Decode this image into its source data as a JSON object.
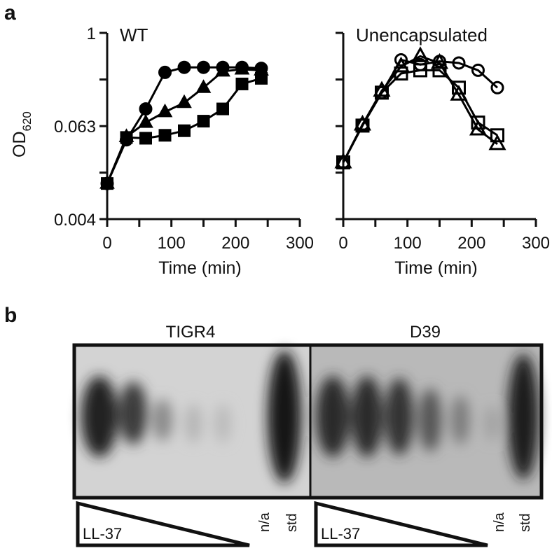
{
  "panel_a_label": "a",
  "chart_data": [
    {
      "type": "line",
      "title": "WT",
      "xlabel": "Time (min)",
      "ylabel": "OD",
      "ylabel_subscript": "620",
      "x": [
        0,
        30,
        60,
        90,
        120,
        150,
        180,
        210,
        240
      ],
      "xlim": [
        0,
        300
      ],
      "xticks": [
        0,
        100,
        200,
        300
      ],
      "ylim": [
        0.004,
        1
      ],
      "yticks": [
        0.004,
        0.063,
        1
      ],
      "ylog": true,
      "ytick_labels": true,
      "series": [
        {
          "marker": "circle",
          "filled": true,
          "color": "#000000",
          "values": [
            0.0115,
            0.042,
            0.105,
            0.31,
            0.36,
            0.36,
            0.36,
            0.36,
            0.35
          ]
        },
        {
          "marker": "triangle",
          "filled": true,
          "color": "#000000",
          "values": [
            0.0115,
            0.046,
            0.07,
            0.096,
            0.126,
            0.197,
            0.32,
            0.34,
            0.33
          ]
        },
        {
          "marker": "square",
          "filled": true,
          "color": "#000000",
          "values": [
            0.0115,
            0.045,
            0.044,
            0.048,
            0.055,
            0.073,
            0.105,
            0.22,
            0.26
          ]
        }
      ]
    },
    {
      "type": "line",
      "title": "Unencapsulated",
      "xlabel": "Time (min)",
      "x": [
        0,
        30,
        60,
        90,
        120,
        150,
        180,
        210,
        240
      ],
      "xlim": [
        0,
        300
      ],
      "xticks": [
        0,
        100,
        200,
        300
      ],
      "ylim": [
        0.004,
        1
      ],
      "yticks": [
        0.004,
        0.063,
        1
      ],
      "ylog": true,
      "ytick_labels": false,
      "series": [
        {
          "marker": "circle",
          "filled": false,
          "color": "#000000",
          "values": [
            0.0215,
            0.066,
            0.17,
            0.45,
            0.39,
            0.43,
            0.41,
            0.33,
            0.197
          ]
        },
        {
          "marker": "triangle",
          "filled": false,
          "color": "#000000",
          "values": [
            0.0215,
            0.066,
            0.18,
            0.37,
            0.5,
            0.41,
            0.16,
            0.057,
            0.037
          ]
        },
        {
          "marker": "square",
          "filled": false,
          "color": "#000000",
          "values": [
            0.0215,
            0.064,
            0.17,
            0.3,
            0.33,
            0.33,
            0.197,
            0.07,
            0.048
          ]
        }
      ]
    }
  ],
  "gel": {
    "label": "b",
    "strains": [
      "TIGR4",
      "D39"
    ],
    "treatment": "LL-37",
    "control": "n/a",
    "standard": "std"
  }
}
